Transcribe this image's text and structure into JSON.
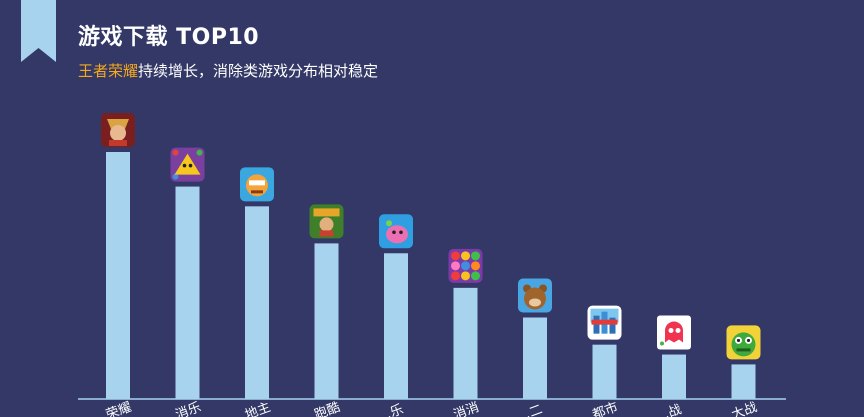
{
  "header": {
    "title": "游戏下载 TOP10",
    "subtitle_highlight": "王者荣耀",
    "subtitle_rest": "持续增长，消除类游戏分布相对稳定"
  },
  "colors": {
    "background": "#333866",
    "bar": "#a7d3ef",
    "highlight_text": "#f7a81b",
    "ribbon": "#a7d3ef",
    "axis": "#a7d3ef"
  },
  "chart_data": {
    "type": "bar",
    "title": "",
    "xlabel": "",
    "ylabel": "",
    "ylim": [
      0,
      100
    ],
    "grid": false,
    "categories": [
      "…荣耀",
      "…消乐",
      "…地主",
      "…跑酷",
      "…乐",
      "…消消",
      "…二",
      "…都市",
      "…战",
      "…大战"
    ],
    "values": [
      100,
      86,
      78,
      63,
      59,
      45,
      33,
      22,
      18,
      14
    ],
    "icons": [
      "hero-warrior-icon",
      "yellow-bird-icon",
      "cartoon-character-icon",
      "runner-icon",
      "pink-blob-icon",
      "colorful-candy-icon",
      "brown-bear-icon",
      "city-buildings-icon",
      "red-ghost-icon",
      "green-monster-icon"
    ]
  }
}
